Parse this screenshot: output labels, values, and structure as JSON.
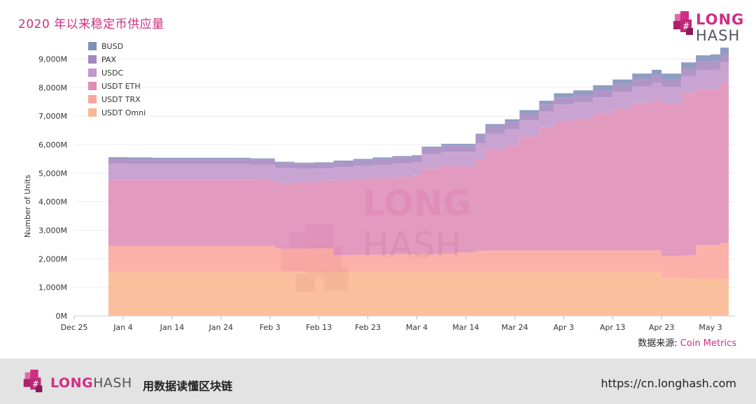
{
  "header": {
    "title": "2020 年以来稳定币供应量"
  },
  "logo": {
    "word1": "LONG",
    "word2": "HASH"
  },
  "source": {
    "label": "数据来源: ",
    "name": "Coin Metrics"
  },
  "footer": {
    "brand1": "LONG",
    "brand2": "HASH",
    "slogan": "用数据读懂区块链",
    "url": "https://cn.longhash.com"
  },
  "colors": {
    "accent": "#cf2f83"
  },
  "chart_data": {
    "type": "area",
    "stacked": true,
    "ylabel": "Number of Units",
    "xlabel": "",
    "ylim": [
      0,
      9500
    ],
    "y_ticks": [
      0,
      1000,
      2000,
      3000,
      4000,
      5000,
      6000,
      7000,
      8000,
      9000
    ],
    "y_tick_labels": [
      "0M",
      "1,000M",
      "2,000M",
      "3,000M",
      "4,000M",
      "5,000M",
      "6,000M",
      "7,000M",
      "8,000M",
      "9,000M"
    ],
    "x_ticks": [
      "2019-12-25",
      "2020-01-04",
      "2020-01-14",
      "2020-01-24",
      "2020-02-03",
      "2020-02-13",
      "2020-02-23",
      "2020-03-04",
      "2020-03-14",
      "2020-03-24",
      "2020-04-03",
      "2020-04-13",
      "2020-04-23",
      "2020-05-03"
    ],
    "x_tick_labels": [
      "Dec 25",
      "Jan 4",
      "Jan 14",
      "Jan 24",
      "Feb 3",
      "Feb 13",
      "Feb 23",
      "Mar 4",
      "Mar 14",
      "Mar 24",
      "Apr 3",
      "Apr 13",
      "Apr 23",
      "May 3"
    ],
    "x": [
      "2020-01-01",
      "2020-01-05",
      "2020-01-10",
      "2020-01-15",
      "2020-01-20",
      "2020-01-25",
      "2020-01-30",
      "2020-02-04",
      "2020-02-08",
      "2020-02-12",
      "2020-02-16",
      "2020-02-20",
      "2020-02-24",
      "2020-02-28",
      "2020-03-03",
      "2020-03-05",
      "2020-03-09",
      "2020-03-12",
      "2020-03-16",
      "2020-03-18",
      "2020-03-22",
      "2020-03-25",
      "2020-03-29",
      "2020-04-01",
      "2020-04-05",
      "2020-04-09",
      "2020-04-13",
      "2020-04-17",
      "2020-04-21",
      "2020-04-23",
      "2020-04-27",
      "2020-04-30",
      "2020-05-03",
      "2020-05-05"
    ],
    "grid": true,
    "legend_position": "top-left",
    "watermark": {
      "word1": "LONG",
      "word2": "HASH"
    },
    "series": [
      {
        "name": "USDT Omni",
        "color": "#f9b791",
        "values": [
          1540,
          1540,
          1540,
          1540,
          1540,
          1540,
          1540,
          1540,
          1540,
          1540,
          1540,
          1540,
          1540,
          1540,
          1540,
          1540,
          1540,
          1540,
          1540,
          1540,
          1540,
          1540,
          1540,
          1540,
          1540,
          1540,
          1540,
          1540,
          1540,
          1340,
          1320,
          1310,
          1310,
          1310
        ]
      },
      {
        "name": "USDT TRX",
        "color": "#fba59d",
        "values": [
          910,
          910,
          910,
          910,
          910,
          910,
          910,
          820,
          820,
          830,
          590,
          600,
          610,
          620,
          620,
          620,
          640,
          680,
          730,
          760,
          760,
          760,
          760,
          760,
          760,
          760,
          760,
          760,
          760,
          760,
          800,
          1170,
          1170,
          1250
        ]
      },
      {
        "name": "USDT ETH",
        "color": "#df8cb6",
        "values": [
          2320,
          2320,
          2320,
          2320,
          2320,
          2320,
          2330,
          2290,
          2320,
          2360,
          2620,
          2650,
          2670,
          2720,
          2780,
          3000,
          3080,
          3030,
          3230,
          3530,
          3690,
          3990,
          4290,
          4530,
          4610,
          4780,
          4960,
          5150,
          5260,
          5330,
          5670,
          5460,
          5460,
          5620
        ]
      },
      {
        "name": "USDC",
        "color": "#c197cc",
        "values": [
          560,
          550,
          550,
          550,
          550,
          550,
          520,
          530,
          470,
          430,
          460,
          470,
          480,
          470,
          440,
          500,
          490,
          500,
          560,
          560,
          560,
          560,
          570,
          580,
          580,
          580,
          590,
          590,
          600,
          600,
          610,
          660,
          690,
          700
        ]
      },
      {
        "name": "PAX",
        "color": "#a586bf",
        "values": [
          190,
          190,
          180,
          180,
          180,
          180,
          180,
          180,
          180,
          180,
          190,
          190,
          200,
          200,
          200,
          220,
          220,
          220,
          250,
          250,
          250,
          250,
          250,
          250,
          260,
          260,
          260,
          270,
          270,
          270,
          280,
          310,
          300,
          290
        ]
      },
      {
        "name": "BUSD",
        "color": "#7f8fb8",
        "values": [
          40,
          40,
          40,
          40,
          40,
          40,
          40,
          40,
          40,
          40,
          40,
          50,
          50,
          50,
          50,
          50,
          60,
          60,
          70,
          80,
          90,
          110,
          130,
          140,
          150,
          160,
          170,
          180,
          190,
          190,
          200,
          220,
          230,
          230
        ]
      }
    ]
  }
}
